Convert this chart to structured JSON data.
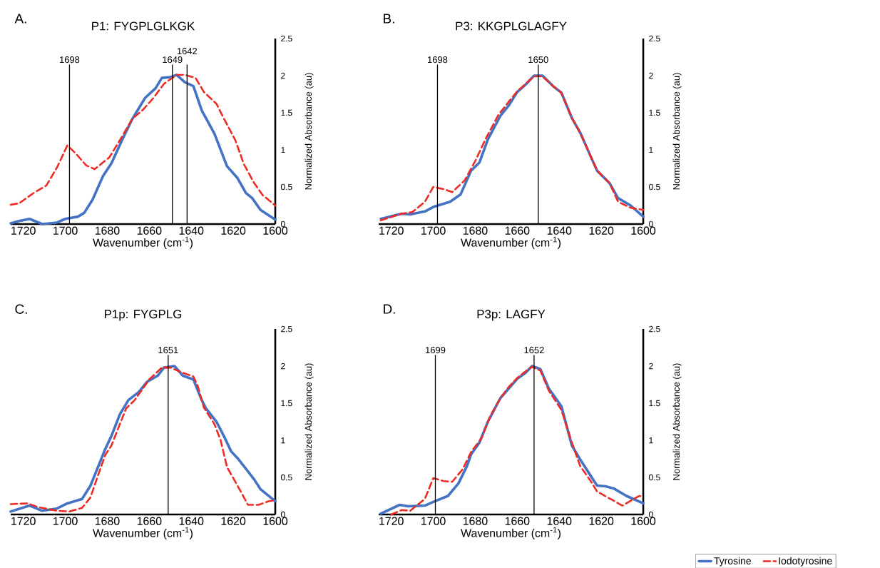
{
  "chart_data": [
    {
      "type": "line",
      "title": "P1: FYGPLGLKGK",
      "xlabel": "Wavenumber (cm$^{-1}$)",
      "ylabel": "Normalized Absorbance (au)",
      "annotations": [
        "A."
      ],
      "xlim": [
        1726,
        1600
      ],
      "xticks": [
        1720,
        1700,
        1680,
        1660,
        1640,
        1620,
        1600
      ],
      "ylim": [
        0,
        2.5
      ],
      "yticks": [
        0,
        0.5,
        1,
        1.5,
        2,
        2.5
      ],
      "ref_lines": [
        {
          "axis": "x",
          "value": 1698,
          "label": "1698"
        },
        {
          "axis": "x",
          "value": 1649,
          "label": "1649"
        },
        {
          "axis": "x",
          "value": 1642,
          "label": "1642"
        }
      ],
      "series": [
        {
          "color": "#4472c4",
          "line_style": "solid",
          "x": [
            1726,
            1722,
            1717,
            1711,
            1704,
            1700,
            1694,
            1691,
            1687,
            1682,
            1678,
            1673,
            1668,
            1662,
            1657,
            1654,
            1650,
            1647,
            1643,
            1639,
            1635,
            1629,
            1623,
            1618,
            1614,
            1611,
            1607,
            1600
          ],
          "values": [
            0.01,
            0.04,
            0.07,
            0,
            0.02,
            0.07,
            0.1,
            0.15,
            0.33,
            0.65,
            0.82,
            1.13,
            1.42,
            1.7,
            1.83,
            1.97,
            1.98,
            2.01,
            1.91,
            1.86,
            1.53,
            1.22,
            0.78,
            0.62,
            0.42,
            0.35,
            0.19,
            0.06
          ]
        },
        {
          "color": "#ee2a24",
          "line_style": "dashed",
          "x": [
            1726,
            1722,
            1715,
            1709,
            1704,
            1699,
            1695,
            1690,
            1686,
            1679,
            1674,
            1668,
            1663,
            1658,
            1653,
            1647,
            1643,
            1638,
            1634,
            1628,
            1625,
            1619,
            1615,
            1610,
            1606,
            1600
          ],
          "values": [
            0.26,
            0.28,
            0.42,
            0.52,
            0.76,
            1.06,
            0.95,
            0.79,
            0.74,
            0.9,
            1.13,
            1.42,
            1.54,
            1.7,
            1.89,
            2.01,
            2.01,
            1.97,
            1.78,
            1.62,
            1.45,
            1.13,
            0.81,
            0.55,
            0.39,
            0.25
          ]
        }
      ]
    },
    {
      "type": "line",
      "title": "P3: KKGPLGLAGFY",
      "xlabel": "Wavenumber (cm$^{-1}$)",
      "ylabel": "Normalized Absorbance (au)",
      "annotations": [
        "B."
      ],
      "xlim": [
        1726,
        1600
      ],
      "xticks": [
        1720,
        1700,
        1680,
        1660,
        1640,
        1620,
        1600
      ],
      "ylim": [
        0,
        2.5
      ],
      "yticks": [
        0,
        0.5,
        1,
        1.5,
        2,
        2.5
      ],
      "ref_lines": [
        {
          "axis": "x",
          "value": 1698,
          "label": "1698"
        },
        {
          "axis": "x",
          "value": 1650,
          "label": "1650"
        }
      ],
      "series": [
        {
          "color": "#4472c4",
          "line_style": "solid",
          "x": [
            1725,
            1715,
            1711,
            1704,
            1700,
            1692,
            1687,
            1682,
            1678,
            1674,
            1668,
            1664,
            1660,
            1656,
            1652,
            1648,
            1643,
            1639,
            1634,
            1630,
            1625,
            1622,
            1616,
            1612,
            1606,
            1600
          ],
          "values": [
            0.07,
            0.14,
            0.13,
            0.17,
            0.23,
            0.3,
            0.4,
            0.72,
            0.83,
            1.14,
            1.46,
            1.6,
            1.78,
            1.88,
            2.0,
            2.0,
            1.86,
            1.77,
            1.43,
            1.23,
            0.91,
            0.72,
            0.55,
            0.35,
            0.25,
            0.1
          ]
        },
        {
          "color": "#ee2a24",
          "line_style": "dashed",
          "x": [
            1725,
            1715,
            1710,
            1704,
            1700,
            1695,
            1691,
            1685,
            1680,
            1675,
            1669,
            1664,
            1660,
            1656,
            1652,
            1648,
            1643,
            1639,
            1634,
            1630,
            1625,
            1622,
            1616,
            1612,
            1606,
            1602,
            1600
          ],
          "values": [
            0.05,
            0.14,
            0.16,
            0.3,
            0.5,
            0.47,
            0.43,
            0.59,
            0.85,
            1.15,
            1.47,
            1.65,
            1.79,
            1.89,
            1.99,
            1.99,
            1.86,
            1.77,
            1.43,
            1.23,
            0.91,
            0.72,
            0.55,
            0.3,
            0.22,
            0.2,
            0.19
          ]
        }
      ]
    },
    {
      "type": "line",
      "title": "P1p: FYGPLG",
      "xlabel": "Wavenumber (cm$^{-1}$)",
      "ylabel": "Normalized Absorbance (au)",
      "annotations": [
        "C."
      ],
      "xlim": [
        1726,
        1600
      ],
      "xticks": [
        1720,
        1700,
        1680,
        1660,
        1640,
        1620,
        1600
      ],
      "ylim": [
        0,
        2.5
      ],
      "yticks": [
        0,
        0.5,
        1,
        1.5,
        2,
        2.5
      ],
      "ref_lines": [
        {
          "axis": "x",
          "value": 1651,
          "label": "1651"
        }
      ],
      "series": [
        {
          "color": "#4472c4",
          "line_style": "solid",
          "x": [
            1726,
            1717,
            1711,
            1704,
            1699,
            1692,
            1688,
            1683,
            1681,
            1678,
            1674,
            1670,
            1665,
            1661,
            1656,
            1653,
            1648,
            1644,
            1639,
            1635,
            1633,
            1628,
            1624,
            1621,
            1618,
            1613,
            1610,
            1607,
            1600
          ],
          "values": [
            0.04,
            0.12,
            0.05,
            0.08,
            0.15,
            0.21,
            0.39,
            0.74,
            0.88,
            1.06,
            1.35,
            1.54,
            1.65,
            1.79,
            1.87,
            1.98,
            2.0,
            1.87,
            1.82,
            1.54,
            1.43,
            1.25,
            1.03,
            0.85,
            0.76,
            0.58,
            0.47,
            0.34,
            0.18
          ]
        },
        {
          "color": "#ee2a24",
          "line_style": "dashed",
          "x": [
            1726,
            1718,
            1713,
            1704,
            1698,
            1692,
            1688,
            1685,
            1681,
            1678,
            1674,
            1671,
            1667,
            1663,
            1660,
            1654,
            1650,
            1645,
            1639,
            1637,
            1634,
            1629,
            1626,
            1623,
            1618,
            1613,
            1608,
            1603,
            1600
          ],
          "values": [
            0.14,
            0.15,
            0.1,
            0.05,
            0.04,
            0.09,
            0.23,
            0.48,
            0.8,
            0.93,
            1.22,
            1.43,
            1.54,
            1.7,
            1.82,
            1.98,
            1.98,
            1.92,
            1.86,
            1.74,
            1.44,
            1.22,
            1.0,
            0.64,
            0.39,
            0.13,
            0.13,
            0.18,
            0.19
          ]
        }
      ]
    },
    {
      "type": "line",
      "title": "P3p: LAGFY",
      "xlabel": "Wavenumber (cm$^{-1}$)",
      "ylabel": "Normalized Absorbance (au)",
      "annotations": [
        "D."
      ],
      "xlim": [
        1726,
        1600
      ],
      "xticks": [
        1720,
        1700,
        1680,
        1660,
        1640,
        1620,
        1600
      ],
      "ylim": [
        0,
        2.5
      ],
      "yticks": [
        0,
        0.5,
        1,
        1.5,
        2,
        2.5
      ],
      "legend": "bottom right",
      "ref_lines": [
        {
          "axis": "x",
          "value": 1699,
          "label": "1699"
        },
        {
          "axis": "x",
          "value": 1652,
          "label": "1652"
        }
      ],
      "series": [
        {
          "name": "Tyrosine",
          "color": "#4472c4",
          "line_style": "solid",
          "x": [
            1725,
            1716,
            1712,
            1704,
            1700,
            1693,
            1688,
            1684,
            1682,
            1678,
            1674,
            1668,
            1664,
            1660,
            1656,
            1653,
            1649,
            1645,
            1639,
            1634,
            1630,
            1625,
            1622,
            1618,
            1614,
            1608,
            1600
          ],
          "values": [
            0.01,
            0.13,
            0.11,
            0.12,
            0.17,
            0.25,
            0.42,
            0.65,
            0.81,
            0.97,
            1.25,
            1.57,
            1.7,
            1.83,
            1.91,
            2.0,
            1.96,
            1.7,
            1.46,
            0.93,
            0.74,
            0.52,
            0.39,
            0.38,
            0.35,
            0.25,
            0.15
          ]
        },
        {
          "name": "Iodotyrosine",
          "color": "#ee2a24",
          "line_style": "dashed",
          "x": [
            1720,
            1715,
            1711,
            1704,
            1700,
            1695,
            1691,
            1686,
            1682,
            1677,
            1673,
            1668,
            1664,
            1660,
            1656,
            1653,
            1649,
            1645,
            1639,
            1634,
            1630,
            1625,
            1622,
            1615,
            1610,
            1605,
            1602,
            1600
          ],
          "values": [
            0.0,
            0.06,
            0.05,
            0.21,
            0.49,
            0.45,
            0.44,
            0.61,
            0.84,
            1.03,
            1.32,
            1.57,
            1.72,
            1.84,
            1.93,
            1.99,
            1.94,
            1.67,
            1.41,
            0.97,
            0.65,
            0.45,
            0.31,
            0.2,
            0.12,
            0.2,
            0.25,
            0.24
          ]
        }
      ]
    }
  ]
}
